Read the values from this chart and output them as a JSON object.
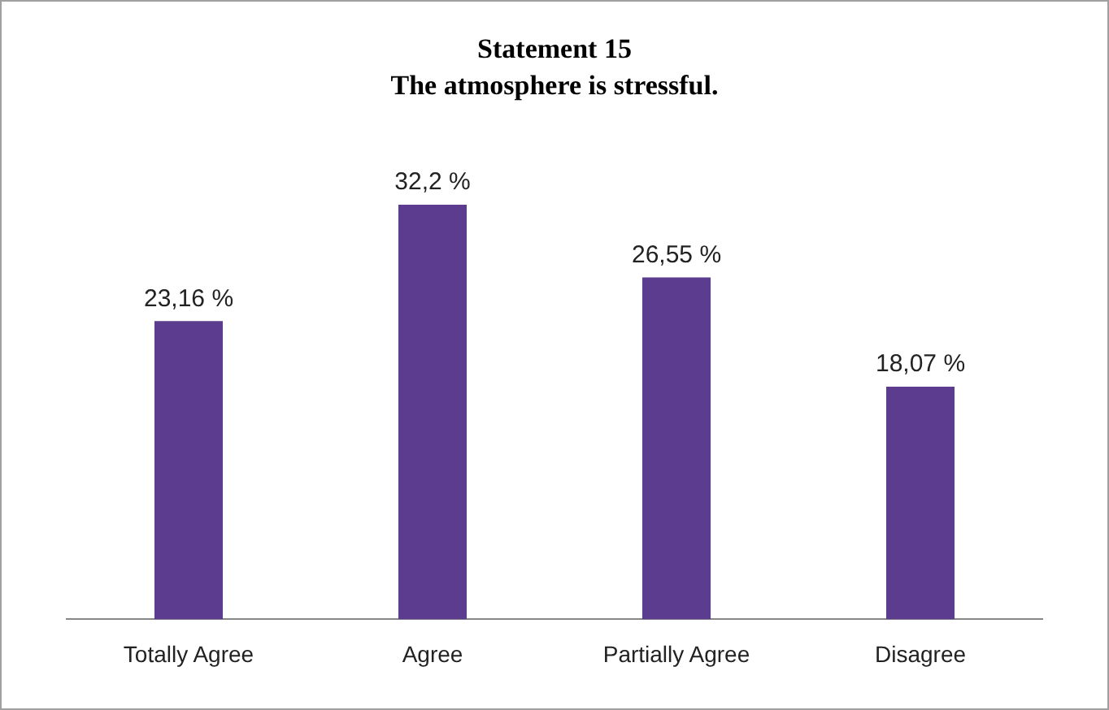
{
  "chart_data": {
    "type": "bar",
    "title": "Statement 15",
    "subtitle": "The atmosphere is stressful.",
    "categories": [
      "Totally Agree",
      "Agree",
      "Partially Agree",
      "Disagree"
    ],
    "values": [
      23.16,
      32.2,
      26.55,
      18.07
    ],
    "value_labels": [
      "23,16 %",
      "32,2 %",
      "26,55 %",
      "18,07 %"
    ],
    "color": "#5c3c8e",
    "grid": false,
    "legend": false
  }
}
